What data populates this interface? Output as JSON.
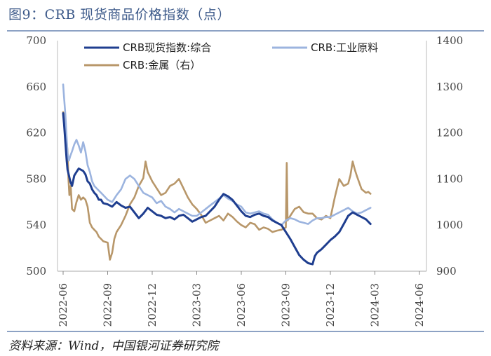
{
  "title": "图9：CRB 现货商品价格指数（点）",
  "source": "资料来源：Wind，中国银河证券研究院",
  "chart_data": {
    "type": "line",
    "x_ticks": [
      "2022-06",
      "2022-09",
      "2022-12",
      "2023-03",
      "2023-06",
      "2023-09",
      "2023-12",
      "2024-03",
      "2024-06"
    ],
    "y_left": {
      "min": 500,
      "max": 700,
      "ticks": [
        "700",
        "660",
        "620",
        "580",
        "540",
        "500"
      ]
    },
    "y_right": {
      "min": 900,
      "max": 1400,
      "ticks": [
        "1400",
        "1300",
        "1200",
        "1100",
        "1000",
        "900"
      ]
    },
    "legend_position": "top",
    "series": [
      {
        "name": "CRB现货指数:综合",
        "axis": "left",
        "color": "#1f3e8f",
        "points": [
          [
            0,
            637
          ],
          [
            0.02,
            628
          ],
          [
            0.05,
            612
          ],
          [
            0.08,
            596
          ],
          [
            0.1,
            588
          ],
          [
            0.13,
            583
          ],
          [
            0.16,
            578
          ],
          [
            0.2,
            574
          ],
          [
            0.25,
            583
          ],
          [
            0.3,
            586
          ],
          [
            0.35,
            589
          ],
          [
            0.4,
            588
          ],
          [
            0.45,
            587
          ],
          [
            0.5,
            584
          ],
          [
            0.55,
            578
          ],
          [
            0.6,
            576
          ],
          [
            0.65,
            571
          ],
          [
            0.7,
            568
          ],
          [
            0.75,
            566
          ],
          [
            0.8,
            562
          ],
          [
            0.85,
            562
          ],
          [
            0.9,
            559
          ],
          [
            1.0,
            558
          ],
          [
            1.1,
            556
          ],
          [
            1.2,
            560
          ],
          [
            1.3,
            557
          ],
          [
            1.4,
            555
          ],
          [
            1.5,
            556
          ],
          [
            1.6,
            551
          ],
          [
            1.7,
            546
          ],
          [
            1.8,
            550
          ],
          [
            1.9,
            555
          ],
          [
            2.0,
            552
          ],
          [
            2.1,
            549
          ],
          [
            2.2,
            548
          ],
          [
            2.3,
            546
          ],
          [
            2.4,
            547
          ],
          [
            2.5,
            545
          ],
          [
            2.6,
            548
          ],
          [
            2.7,
            549
          ],
          [
            2.8,
            546
          ],
          [
            2.9,
            543
          ],
          [
            3.0,
            545
          ],
          [
            3.1,
            547
          ],
          [
            3.2,
            548
          ],
          [
            3.3,
            552
          ],
          [
            3.4,
            556
          ],
          [
            3.5,
            562
          ],
          [
            3.6,
            567
          ],
          [
            3.7,
            565
          ],
          [
            3.8,
            562
          ],
          [
            3.9,
            557
          ],
          [
            4.0,
            552
          ],
          [
            4.1,
            548
          ],
          [
            4.2,
            547
          ],
          [
            4.3,
            549
          ],
          [
            4.4,
            550
          ],
          [
            4.5,
            548
          ],
          [
            4.6,
            547
          ],
          [
            4.7,
            544
          ],
          [
            4.8,
            542
          ],
          [
            4.9,
            540
          ],
          [
            5.0,
            534
          ],
          [
            5.1,
            528
          ],
          [
            5.2,
            521
          ],
          [
            5.3,
            514
          ],
          [
            5.4,
            510
          ],
          [
            5.5,
            507
          ],
          [
            5.6,
            506
          ],
          [
            5.65,
            513
          ],
          [
            5.7,
            516
          ],
          [
            5.8,
            519
          ],
          [
            5.9,
            523
          ],
          [
            6.0,
            527
          ],
          [
            6.1,
            530
          ],
          [
            6.2,
            534
          ],
          [
            6.3,
            541
          ],
          [
            6.4,
            548
          ],
          [
            6.5,
            551
          ],
          [
            6.6,
            549
          ],
          [
            6.7,
            547
          ],
          [
            6.8,
            545
          ],
          [
            6.85,
            543
          ],
          [
            6.9,
            541
          ]
        ]
      },
      {
        "name": "CRB:工业原料",
        "axis": "left",
        "color": "#9cb4df",
        "points": [
          [
            0,
            662
          ],
          [
            0.02,
            651
          ],
          [
            0.05,
            636
          ],
          [
            0.08,
            615
          ],
          [
            0.1,
            602
          ],
          [
            0.13,
            596
          ],
          [
            0.16,
            600
          ],
          [
            0.2,
            604
          ],
          [
            0.25,
            610
          ],
          [
            0.3,
            614
          ],
          [
            0.35,
            609
          ],
          [
            0.4,
            603
          ],
          [
            0.45,
            612
          ],
          [
            0.5,
            604
          ],
          [
            0.55,
            592
          ],
          [
            0.6,
            586
          ],
          [
            0.65,
            578
          ],
          [
            0.7,
            574
          ],
          [
            0.75,
            572
          ],
          [
            0.8,
            570
          ],
          [
            0.85,
            568
          ],
          [
            0.9,
            566
          ],
          [
            1.0,
            562
          ],
          [
            1.1,
            560
          ],
          [
            1.2,
            566
          ],
          [
            1.3,
            571
          ],
          [
            1.4,
            580
          ],
          [
            1.5,
            583
          ],
          [
            1.6,
            580
          ],
          [
            1.7,
            574
          ],
          [
            1.8,
            568
          ],
          [
            1.9,
            566
          ],
          [
            2.0,
            564
          ],
          [
            2.1,
            559
          ],
          [
            2.2,
            561
          ],
          [
            2.3,
            556
          ],
          [
            2.4,
            554
          ],
          [
            2.5,
            551
          ],
          [
            2.6,
            554
          ],
          [
            2.7,
            552
          ],
          [
            2.8,
            550
          ],
          [
            2.9,
            548
          ],
          [
            3.0,
            548
          ],
          [
            3.1,
            551
          ],
          [
            3.2,
            554
          ],
          [
            3.3,
            557
          ],
          [
            3.4,
            560
          ],
          [
            3.5,
            563
          ],
          [
            3.6,
            566
          ],
          [
            3.7,
            563
          ],
          [
            3.8,
            561
          ],
          [
            3.9,
            558
          ],
          [
            4.0,
            556
          ],
          [
            4.1,
            551
          ],
          [
            4.2,
            550
          ],
          [
            4.3,
            551
          ],
          [
            4.4,
            552
          ],
          [
            4.5,
            550
          ],
          [
            4.6,
            549
          ],
          [
            4.7,
            545
          ],
          [
            4.8,
            542
          ],
          [
            4.9,
            540
          ],
          [
            5.0,
            544
          ],
          [
            5.1,
            546
          ],
          [
            5.2,
            545
          ],
          [
            5.3,
            543
          ],
          [
            5.4,
            542
          ],
          [
            5.5,
            541
          ],
          [
            5.6,
            544
          ],
          [
            5.7,
            546
          ],
          [
            5.8,
            546
          ],
          [
            5.9,
            547
          ],
          [
            6.0,
            547
          ],
          [
            6.1,
            549
          ],
          [
            6.2,
            551
          ],
          [
            6.3,
            553
          ],
          [
            6.4,
            555
          ],
          [
            6.5,
            552
          ],
          [
            6.6,
            550
          ],
          [
            6.7,
            551
          ],
          [
            6.8,
            553
          ],
          [
            6.85,
            554
          ],
          [
            6.9,
            555
          ]
        ]
      },
      {
        "name": "CRB:金属（右）",
        "axis": "right",
        "color": "#b8976a",
        "points": [
          [
            0,
            1245
          ],
          [
            0.02,
            1240
          ],
          [
            0.05,
            1195
          ],
          [
            0.08,
            1180
          ],
          [
            0.1,
            1160
          ],
          [
            0.12,
            1100
          ],
          [
            0.14,
            1065
          ],
          [
            0.17,
            1085
          ],
          [
            0.2,
            1035
          ],
          [
            0.25,
            1030
          ],
          [
            0.3,
            1050
          ],
          [
            0.35,
            1065
          ],
          [
            0.4,
            1055
          ],
          [
            0.45,
            1060
          ],
          [
            0.5,
            1055
          ],
          [
            0.55,
            1040
          ],
          [
            0.6,
            1005
          ],
          [
            0.65,
            995
          ],
          [
            0.7,
            990
          ],
          [
            0.75,
            985
          ],
          [
            0.8,
            975
          ],
          [
            0.85,
            970
          ],
          [
            0.9,
            965
          ],
          [
            1.0,
            962
          ],
          [
            1.05,
            925
          ],
          [
            1.1,
            940
          ],
          [
            1.15,
            970
          ],
          [
            1.2,
            985
          ],
          [
            1.3,
            1000
          ],
          [
            1.4,
            1020
          ],
          [
            1.5,
            1045
          ],
          [
            1.6,
            1060
          ],
          [
            1.7,
            1085
          ],
          [
            1.8,
            1102
          ],
          [
            1.85,
            1138
          ],
          [
            1.9,
            1115
          ],
          [
            2.0,
            1095
          ],
          [
            2.1,
            1080
          ],
          [
            2.2,
            1065
          ],
          [
            2.3,
            1070
          ],
          [
            2.4,
            1085
          ],
          [
            2.5,
            1090
          ],
          [
            2.6,
            1100
          ],
          [
            2.7,
            1080
          ],
          [
            2.8,
            1060
          ],
          [
            2.9,
            1045
          ],
          [
            3.0,
            1035
          ],
          [
            3.1,
            1022
          ],
          [
            3.2,
            1005
          ],
          [
            3.3,
            1010
          ],
          [
            3.4,
            1015
          ],
          [
            3.5,
            1020
          ],
          [
            3.6,
            1010
          ],
          [
            3.7,
            1025
          ],
          [
            3.8,
            1018
          ],
          [
            3.9,
            1008
          ],
          [
            4.0,
            1000
          ],
          [
            4.1,
            995
          ],
          [
            4.2,
            1005
          ],
          [
            4.3,
            1002
          ],
          [
            4.4,
            990
          ],
          [
            4.5,
            995
          ],
          [
            4.6,
            992
          ],
          [
            4.7,
            985
          ],
          [
            4.8,
            988
          ],
          [
            4.9,
            990
          ],
          [
            5.0,
            995
          ],
          [
            5.02,
            1135
          ],
          [
            5.04,
            1010
          ],
          [
            5.1,
            1020
          ],
          [
            5.2,
            1035
          ],
          [
            5.3,
            1040
          ],
          [
            5.4,
            1028
          ],
          [
            5.5,
            1025
          ],
          [
            5.6,
            1025
          ],
          [
            5.7,
            1015
          ],
          [
            5.8,
            1012
          ],
          [
            5.9,
            1020
          ],
          [
            6.0,
            1015
          ],
          [
            6.1,
            1060
          ],
          [
            6.2,
            1100
          ],
          [
            6.3,
            1085
          ],
          [
            6.4,
            1090
          ],
          [
            6.45,
            1108
          ],
          [
            6.5,
            1138
          ],
          [
            6.55,
            1120
          ],
          [
            6.6,
            1105
          ],
          [
            6.7,
            1078
          ],
          [
            6.8,
            1070
          ],
          [
            6.85,
            1072
          ],
          [
            6.9,
            1068
          ]
        ]
      }
    ]
  }
}
